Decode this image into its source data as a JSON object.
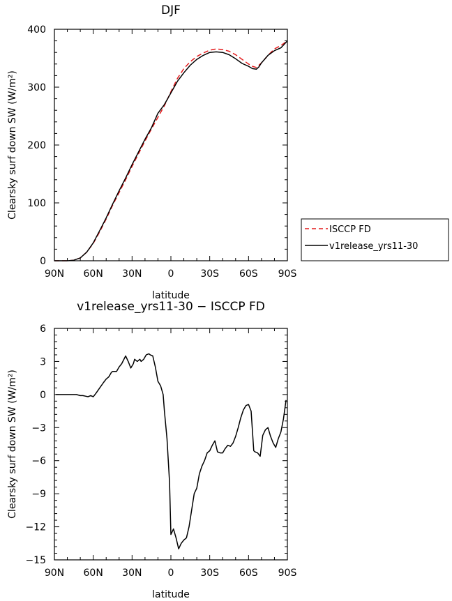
{
  "chart_data": [
    {
      "type": "line",
      "title": "DJF",
      "xlabel": "latitude",
      "ylabel": "Clearsky surf down SW (W/m²)",
      "xlim": [
        -90,
        90
      ],
      "ylim": [
        0,
        400
      ],
      "x_ticks": [
        {
          "value": -90,
          "label": "90N"
        },
        {
          "value": -60,
          "label": "60N"
        },
        {
          "value": -30,
          "label": "30N"
        },
        {
          "value": 0,
          "label": "0"
        },
        {
          "value": 30,
          "label": "30S"
        },
        {
          "value": 60,
          "label": "60S"
        },
        {
          "value": 90,
          "label": "90S"
        }
      ],
      "y_ticks": [
        {
          "value": 0,
          "label": "0"
        },
        {
          "value": 100,
          "label": "100"
        },
        {
          "value": 200,
          "label": "200"
        },
        {
          "value": 300,
          "label": "300"
        },
        {
          "value": 400,
          "label": "400"
        }
      ],
      "legend": {
        "placement": "right",
        "entries": [
          {
            "label": "ISCCP FD",
            "color": "#e41a1c",
            "dash": "dashed"
          },
          {
            "label": "v1release_yrs11-30",
            "color": "#000000",
            "dash": "solid"
          }
        ]
      },
      "series": [
        {
          "name": "ISCCP FD",
          "color": "#e41a1c",
          "dash": "dashed",
          "x": [
            -90,
            -80,
            -75,
            -70,
            -65,
            -60,
            -55,
            -50,
            -45,
            -40,
            -35,
            -30,
            -25,
            -20,
            -15,
            -10,
            -5,
            0,
            5,
            10,
            15,
            20,
            25,
            30,
            35,
            40,
            45,
            50,
            55,
            60,
            63,
            66,
            70,
            75,
            80,
            85,
            90
          ],
          "y": [
            0,
            0,
            1,
            5,
            15,
            30,
            50,
            72,
            96,
            118,
            140,
            163,
            185,
            207,
            228,
            248,
            268,
            292,
            315,
            332,
            344,
            353,
            359,
            364,
            366,
            365,
            362,
            356,
            348,
            340,
            336,
            334,
            342,
            355,
            366,
            372,
            380
          ]
        },
        {
          "name": "v1release_yrs11-30",
          "color": "#000000",
          "dash": "solid",
          "x": [
            -90,
            -80,
            -75,
            -70,
            -65,
            -60,
            -55,
            -50,
            -45,
            -40,
            -35,
            -30,
            -25,
            -20,
            -15,
            -10,
            -5,
            0,
            5,
            10,
            15,
            20,
            25,
            30,
            35,
            40,
            45,
            50,
            55,
            60,
            63,
            66,
            68,
            70,
            75,
            80,
            85,
            90
          ],
          "y": [
            0,
            0,
            1,
            5,
            15,
            31,
            52,
            74,
            98,
            121,
            143,
            166,
            188,
            210,
            230,
            255,
            270,
            290,
            310,
            325,
            338,
            348,
            355,
            360,
            361,
            360,
            356,
            349,
            341,
            336,
            332,
            331,
            335,
            342,
            355,
            363,
            368,
            380
          ]
        }
      ]
    },
    {
      "type": "line",
      "title": "v1release_yrs11-30 − ISCCP FD",
      "xlabel": "latitude",
      "ylabel": "Clearsky surf down SW (W/m²)",
      "xlim": [
        -90,
        90
      ],
      "ylim": [
        -15,
        6
      ],
      "x_ticks": [
        {
          "value": -90,
          "label": "90N"
        },
        {
          "value": -60,
          "label": "60N"
        },
        {
          "value": -30,
          "label": "30N"
        },
        {
          "value": 0,
          "label": "0"
        },
        {
          "value": 30,
          "label": "30S"
        },
        {
          "value": 60,
          "label": "60S"
        },
        {
          "value": 90,
          "label": "90S"
        }
      ],
      "y_ticks": [
        {
          "value": 6,
          "label": "6"
        },
        {
          "value": 3,
          "label": "3"
        },
        {
          "value": 0,
          "label": "0"
        },
        {
          "value": -3,
          "label": "−3"
        },
        {
          "value": -6,
          "label": "−6"
        },
        {
          "value": -9,
          "label": "−9"
        },
        {
          "value": -12,
          "label": "−12"
        },
        {
          "value": -15,
          "label": "−15"
        }
      ],
      "series": [
        {
          "name": "v1release_yrs11-30 − ISCCP FD",
          "color": "#000000",
          "dash": "solid",
          "x": [
            -89,
            -85,
            -80,
            -77,
            -73,
            -70,
            -68,
            -66,
            -64,
            -62,
            -60,
            -58,
            -55,
            -52,
            -50,
            -48,
            -46,
            -45,
            -42,
            -40,
            -38,
            -35,
            -33,
            -31,
            -29,
            -28,
            -26,
            -24,
            -23,
            -21,
            -19,
            -17,
            -16,
            -14,
            -12,
            -10,
            -8,
            -6,
            -5,
            -3,
            -1,
            0,
            2,
            4,
            6,
            8,
            10,
            12,
            14,
            16,
            18,
            20,
            22,
            24,
            26,
            28,
            30,
            32,
            34,
            36,
            38,
            40,
            42,
            44,
            46,
            48,
            50,
            52,
            54,
            56,
            58,
            60,
            62,
            64,
            65,
            67,
            69,
            71,
            73,
            75,
            77,
            79,
            81,
            83,
            85,
            87,
            89
          ],
          "y": [
            0,
            0,
            0,
            0,
            0,
            -0.1,
            -0.1,
            -0.15,
            -0.2,
            -0.1,
            -0.2,
            0.1,
            0.6,
            1.1,
            1.4,
            1.6,
            2.0,
            2.1,
            2.1,
            2.5,
            2.8,
            3.5,
            3.0,
            2.4,
            2.8,
            3.2,
            3.0,
            3.2,
            3.0,
            3.2,
            3.6,
            3.7,
            3.6,
            3.5,
            2.5,
            1.2,
            0.8,
            0.0,
            -1.5,
            -4.0,
            -8.0,
            -12.7,
            -12.2,
            -13.0,
            -14.0,
            -13.5,
            -13.2,
            -13.0,
            -12.0,
            -10.5,
            -9.0,
            -8.5,
            -7.2,
            -6.5,
            -6.0,
            -5.3,
            -5.1,
            -4.6,
            -4.2,
            -5.2,
            -5.3,
            -5.3,
            -4.9,
            -4.6,
            -4.7,
            -4.4,
            -3.8,
            -3.0,
            -2.1,
            -1.4,
            -1.0,
            -0.9,
            -1.5,
            -5.1,
            -5.2,
            -5.3,
            -5.6,
            -3.7,
            -3.2,
            -3.0,
            -3.8,
            -4.4,
            -4.8,
            -4.0,
            -3.4,
            -2.2,
            -0.5
          ]
        }
      ]
    }
  ]
}
